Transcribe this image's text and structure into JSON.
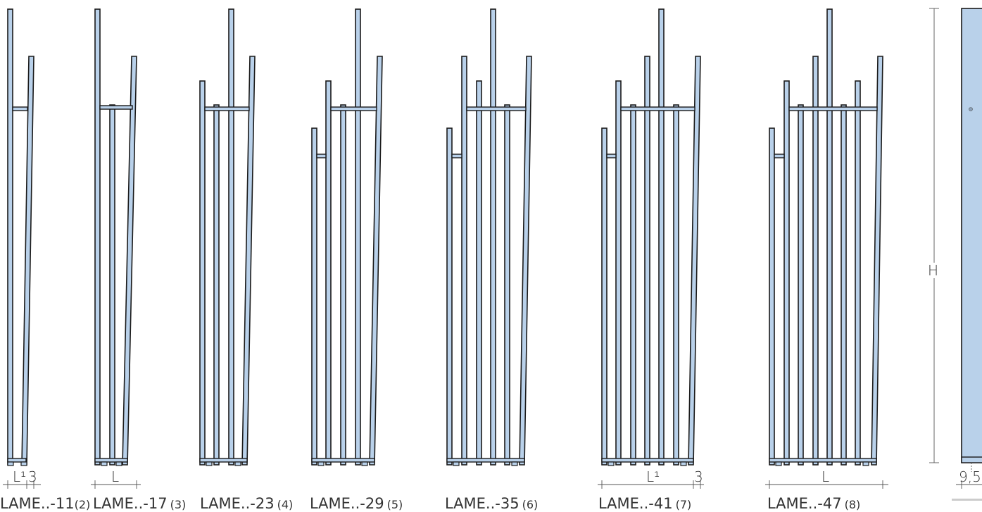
{
  "models": [
    {
      "name": "LAME..-11",
      "count": "(2)"
    },
    {
      "name": "LAME..-17",
      "count": "(3)"
    },
    {
      "name": "LAME..-23",
      "count": "(4)"
    },
    {
      "name": "LAME..-29",
      "count": "(5)"
    },
    {
      "name": "LAME..-35",
      "count": "(6)"
    },
    {
      "name": "LAME..-41",
      "count": "(7)"
    },
    {
      "name": "LAME..-47",
      "count": "(8)"
    }
  ],
  "dimensions": {
    "l1": "L¹",
    "gap": "3",
    "l": "L",
    "height": "H",
    "depth": "9,5"
  },
  "colors": {
    "tube_fill": "#b9d1ea",
    "outline": "#1a1a1a"
  }
}
